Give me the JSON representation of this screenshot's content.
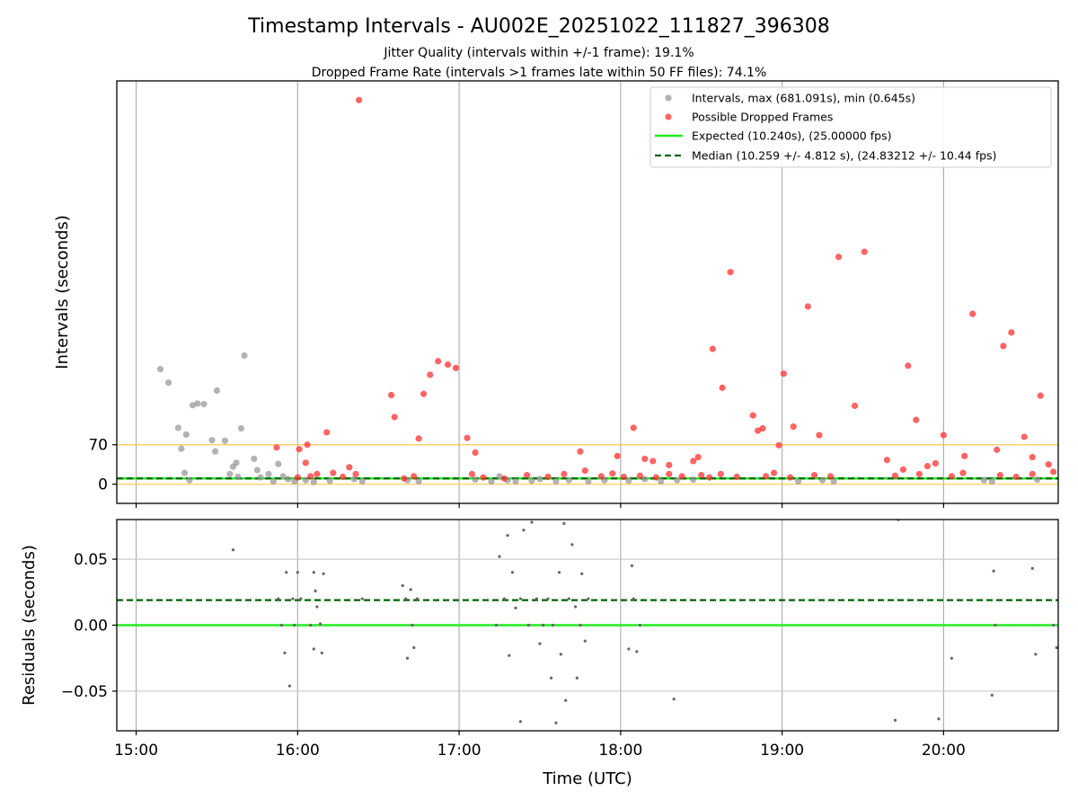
{
  "figure": {
    "title": "Timestamp Intervals - AU002E_20251022_111827_396308",
    "subtitle_1": "Jitter Quality (intervals within +/-1 frame): 19.1%",
    "subtitle_2": "Dropped Frame Rate (intervals >1 frames late within 50 FF files): 74.1%",
    "xlabel": "Time (UTC)"
  },
  "chart_data": [
    {
      "type": "scatter",
      "ylabel": "Intervals (seconds)",
      "xlim": [
        14.88,
        20.71
      ],
      "ylim": [
        -34,
        715
      ],
      "yticks": [
        0,
        70
      ],
      "xticks": [
        15,
        16,
        17,
        18,
        19,
        20
      ],
      "xticklabels": [
        "15:00",
        "16:00",
        "17:00",
        "18:00",
        "19:00",
        "20:00"
      ],
      "threshold_lines": [
        70,
        0
      ],
      "expected_value": 10.24,
      "median_value": 10.259,
      "legend": {
        "position": "top-right",
        "items": [
          "Intervals, max (681.091s), min (0.645s)",
          "Possible Dropped Frames",
          "Expected (10.240s), (25.00000 fps)",
          "Median (10.259 +/- 4.812 s), (24.83212 +/- 10.44 fps)"
        ]
      },
      "series": [
        {
          "name": "Intervals",
          "color": "#999999",
          "points": [
            [
              15.15,
              204
            ],
            [
              15.2,
              180
            ],
            [
              15.26,
              100
            ],
            [
              15.28,
              63
            ],
            [
              15.3,
              20
            ],
            [
              15.31,
              88
            ],
            [
              15.33,
              7
            ],
            [
              15.35,
              140
            ],
            [
              15.38,
              143
            ],
            [
              15.42,
              142
            ],
            [
              15.47,
              78
            ],
            [
              15.49,
              58
            ],
            [
              15.5,
              166
            ],
            [
              15.55,
              77
            ],
            [
              15.6,
              31
            ],
            [
              15.62,
              38
            ],
            [
              15.63,
              13
            ],
            [
              15.65,
              99
            ],
            [
              15.67,
              228
            ],
            [
              15.58,
              18
            ],
            [
              15.73,
              45
            ],
            [
              15.75,
              25
            ],
            [
              15.77,
              12
            ],
            [
              15.82,
              18
            ],
            [
              15.85,
              5
            ],
            [
              15.88,
              36
            ],
            [
              15.91,
              14
            ],
            [
              15.94,
              9
            ],
            [
              15.98,
              5
            ],
            [
              16.05,
              7
            ],
            [
              16.1,
              4
            ],
            [
              16.2,
              6
            ],
            [
              16.35,
              9
            ],
            [
              16.4,
              5
            ],
            [
              16.68,
              7
            ],
            [
              16.75,
              5
            ],
            [
              17.1,
              8
            ],
            [
              17.2,
              5
            ],
            [
              17.25,
              14
            ],
            [
              17.3,
              7
            ],
            [
              17.35,
              5
            ],
            [
              17.45,
              6
            ],
            [
              17.5,
              9
            ],
            [
              17.6,
              5
            ],
            [
              17.68,
              7
            ],
            [
              17.8,
              5
            ],
            [
              17.9,
              7
            ],
            [
              18.05,
              6
            ],
            [
              18.15,
              9
            ],
            [
              18.25,
              5
            ],
            [
              18.35,
              7
            ],
            [
              18.45,
              8
            ],
            [
              19.1,
              5
            ],
            [
              19.25,
              7
            ],
            [
              19.32,
              5
            ],
            [
              20.25,
              7
            ],
            [
              20.3,
              5
            ],
            [
              20.58,
              8
            ]
          ]
        },
        {
          "name": "Possible Dropped Frames",
          "color": "#ff3030",
          "points": [
            [
              16.38,
              681
            ],
            [
              16.58,
              158
            ],
            [
              16.6,
              119
            ],
            [
              16.75,
              81
            ],
            [
              16.78,
              160
            ],
            [
              16.82,
              194
            ],
            [
              16.87,
              218
            ],
            [
              16.93,
              212
            ],
            [
              16.98,
              206
            ],
            [
              15.87,
              65
            ],
            [
              16.01,
              62
            ],
            [
              16.06,
              70
            ],
            [
              16.18,
              92
            ],
            [
              16.05,
              38
            ],
            [
              17.05,
              82
            ],
            [
              17.1,
              56
            ],
            [
              17.75,
              58
            ],
            [
              17.98,
              50
            ],
            [
              18.08,
              100
            ],
            [
              18.15,
              45
            ],
            [
              18.2,
              41
            ],
            [
              18.3,
              34
            ],
            [
              18.45,
              41
            ],
            [
              18.48,
              48
            ],
            [
              18.57,
              240
            ],
            [
              18.63,
              171
            ],
            [
              18.68,
              376
            ],
            [
              18.82,
              122
            ],
            [
              18.85,
              95
            ],
            [
              18.88,
              99
            ],
            [
              18.98,
              69
            ],
            [
              19.01,
              196
            ],
            [
              19.07,
              102
            ],
            [
              19.16,
              315
            ],
            [
              19.23,
              87
            ],
            [
              19.35,
              403
            ],
            [
              19.51,
              412
            ],
            [
              19.45,
              139
            ],
            [
              19.65,
              43
            ],
            [
              19.78,
              210
            ],
            [
              19.83,
              114
            ],
            [
              19.95,
              37
            ],
            [
              20,
              87
            ],
            [
              20.13,
              50
            ],
            [
              20.18,
              302
            ],
            [
              20.33,
              61
            ],
            [
              20.37,
              245
            ],
            [
              20.42,
              269
            ],
            [
              20.5,
              84
            ],
            [
              20.55,
              48
            ],
            [
              20.6,
              157
            ],
            [
              20.65,
              35
            ],
            [
              16.0,
              12
            ],
            [
              16.08,
              14
            ],
            [
              16.12,
              18
            ],
            [
              16.22,
              20
            ],
            [
              16.28,
              13
            ],
            [
              16.32,
              30
            ],
            [
              16.36,
              18
            ],
            [
              16.66,
              10
            ],
            [
              16.72,
              14
            ],
            [
              17.08,
              18
            ],
            [
              17.15,
              12
            ],
            [
              17.28,
              10
            ],
            [
              17.42,
              16
            ],
            [
              17.55,
              13
            ],
            [
              17.65,
              18
            ],
            [
              17.78,
              24
            ],
            [
              17.88,
              14
            ],
            [
              17.95,
              19
            ],
            [
              18.02,
              13
            ],
            [
              18.12,
              15
            ],
            [
              18.22,
              12
            ],
            [
              18.3,
              18
            ],
            [
              18.38,
              14
            ],
            [
              18.5,
              16
            ],
            [
              18.55,
              12
            ],
            [
              18.62,
              18
            ],
            [
              18.72,
              13
            ],
            [
              18.9,
              14
            ],
            [
              18.95,
              20
            ],
            [
              19.05,
              12
            ],
            [
              19.2,
              16
            ],
            [
              19.3,
              14
            ],
            [
              19.7,
              15
            ],
            [
              19.75,
              26
            ],
            [
              19.85,
              18
            ],
            [
              19.9,
              32
            ],
            [
              20.05,
              14
            ],
            [
              20.12,
              20
            ],
            [
              20.35,
              16
            ],
            [
              20.45,
              13
            ],
            [
              20.55,
              18
            ],
            [
              20.68,
              22
            ]
          ]
        }
      ]
    },
    {
      "type": "scatter",
      "ylabel": "Residuals (seconds)",
      "xlim": [
        14.88,
        20.71
      ],
      "ylim": [
        -0.08,
        0.08
      ],
      "yticks": [
        0.05,
        0.0,
        -0.05
      ],
      "yticklabels": [
        "0.05",
        "0.00",
        "−0.05"
      ],
      "xticks": [
        15,
        16,
        17,
        18,
        19,
        20
      ],
      "xticklabels": [
        "15:00",
        "16:00",
        "17:00",
        "18:00",
        "19:00",
        "20:00"
      ],
      "expected_value": 0.0,
      "median_value": 0.019,
      "series": [
        {
          "name": "Residuals",
          "color": "#666666",
          "points": [
            [
              15.6,
              0.057
            ],
            [
              15.93,
              0.04
            ],
            [
              15.95,
              -0.046
            ],
            [
              15.88,
              0.02
            ],
            [
              15.9,
              0.0
            ],
            [
              15.92,
              -0.021
            ],
            [
              15.97,
              0.02
            ],
            [
              15.98,
              0.0
            ],
            [
              16.0,
              0.04
            ],
            [
              16.02,
              0.02
            ],
            [
              16.08,
              0.0
            ],
            [
              16.1,
              -0.018
            ],
            [
              16.1,
              0.04
            ],
            [
              16.11,
              0.026
            ],
            [
              16.12,
              0.014
            ],
            [
              16.14,
              0.001
            ],
            [
              16.15,
              -0.021
            ],
            [
              16.16,
              0.039
            ],
            [
              16.4,
              0.02
            ],
            [
              16.65,
              0.03
            ],
            [
              16.67,
              0.02
            ],
            [
              16.68,
              -0.025
            ],
            [
              16.7,
              0.027
            ],
            [
              16.71,
              0.0
            ],
            [
              16.72,
              -0.017
            ],
            [
              16.74,
              0.02
            ],
            [
              17.23,
              0.0
            ],
            [
              17.25,
              0.052
            ],
            [
              17.28,
              0.02
            ],
            [
              17.3,
              0.068
            ],
            [
              17.31,
              -0.023
            ],
            [
              17.33,
              0.04
            ],
            [
              17.35,
              0.013
            ],
            [
              17.38,
              0.02
            ],
            [
              17.38,
              -0.073
            ],
            [
              17.4,
              0.072
            ],
            [
              17.43,
              0.0
            ],
            [
              17.45,
              0.078
            ],
            [
              17.48,
              0.02
            ],
            [
              17.5,
              -0.014
            ],
            [
              17.52,
              0.0
            ],
            [
              17.55,
              0.02
            ],
            [
              17.57,
              -0.04
            ],
            [
              17.58,
              0.0
            ],
            [
              17.6,
              -0.074
            ],
            [
              17.62,
              0.04
            ],
            [
              17.63,
              -0.022
            ],
            [
              17.65,
              0.077
            ],
            [
              17.66,
              -0.057
            ],
            [
              17.68,
              0.02
            ],
            [
              17.7,
              0.061
            ],
            [
              17.72,
              0.014
            ],
            [
              17.73,
              -0.04
            ],
            [
              17.75,
              0.0
            ],
            [
              17.76,
              0.039
            ],
            [
              17.78,
              -0.012
            ],
            [
              17.8,
              0.02
            ],
            [
              18.05,
              -0.018
            ],
            [
              18.07,
              0.045
            ],
            [
              18.08,
              0.02
            ],
            [
              18.1,
              -0.02
            ],
            [
              18.12,
              0.0
            ],
            [
              18.33,
              -0.056
            ],
            [
              19.7,
              -0.072
            ],
            [
              19.72,
              0.08
            ],
            [
              19.97,
              -0.071
            ],
            [
              20.05,
              -0.025
            ],
            [
              20.3,
              -0.053
            ],
            [
              20.31,
              0.041
            ],
            [
              20.32,
              0.0
            ],
            [
              20.55,
              0.043
            ],
            [
              20.57,
              -0.022
            ],
            [
              20.68,
              0.0
            ],
            [
              20.7,
              -0.017
            ]
          ]
        }
      ]
    }
  ]
}
